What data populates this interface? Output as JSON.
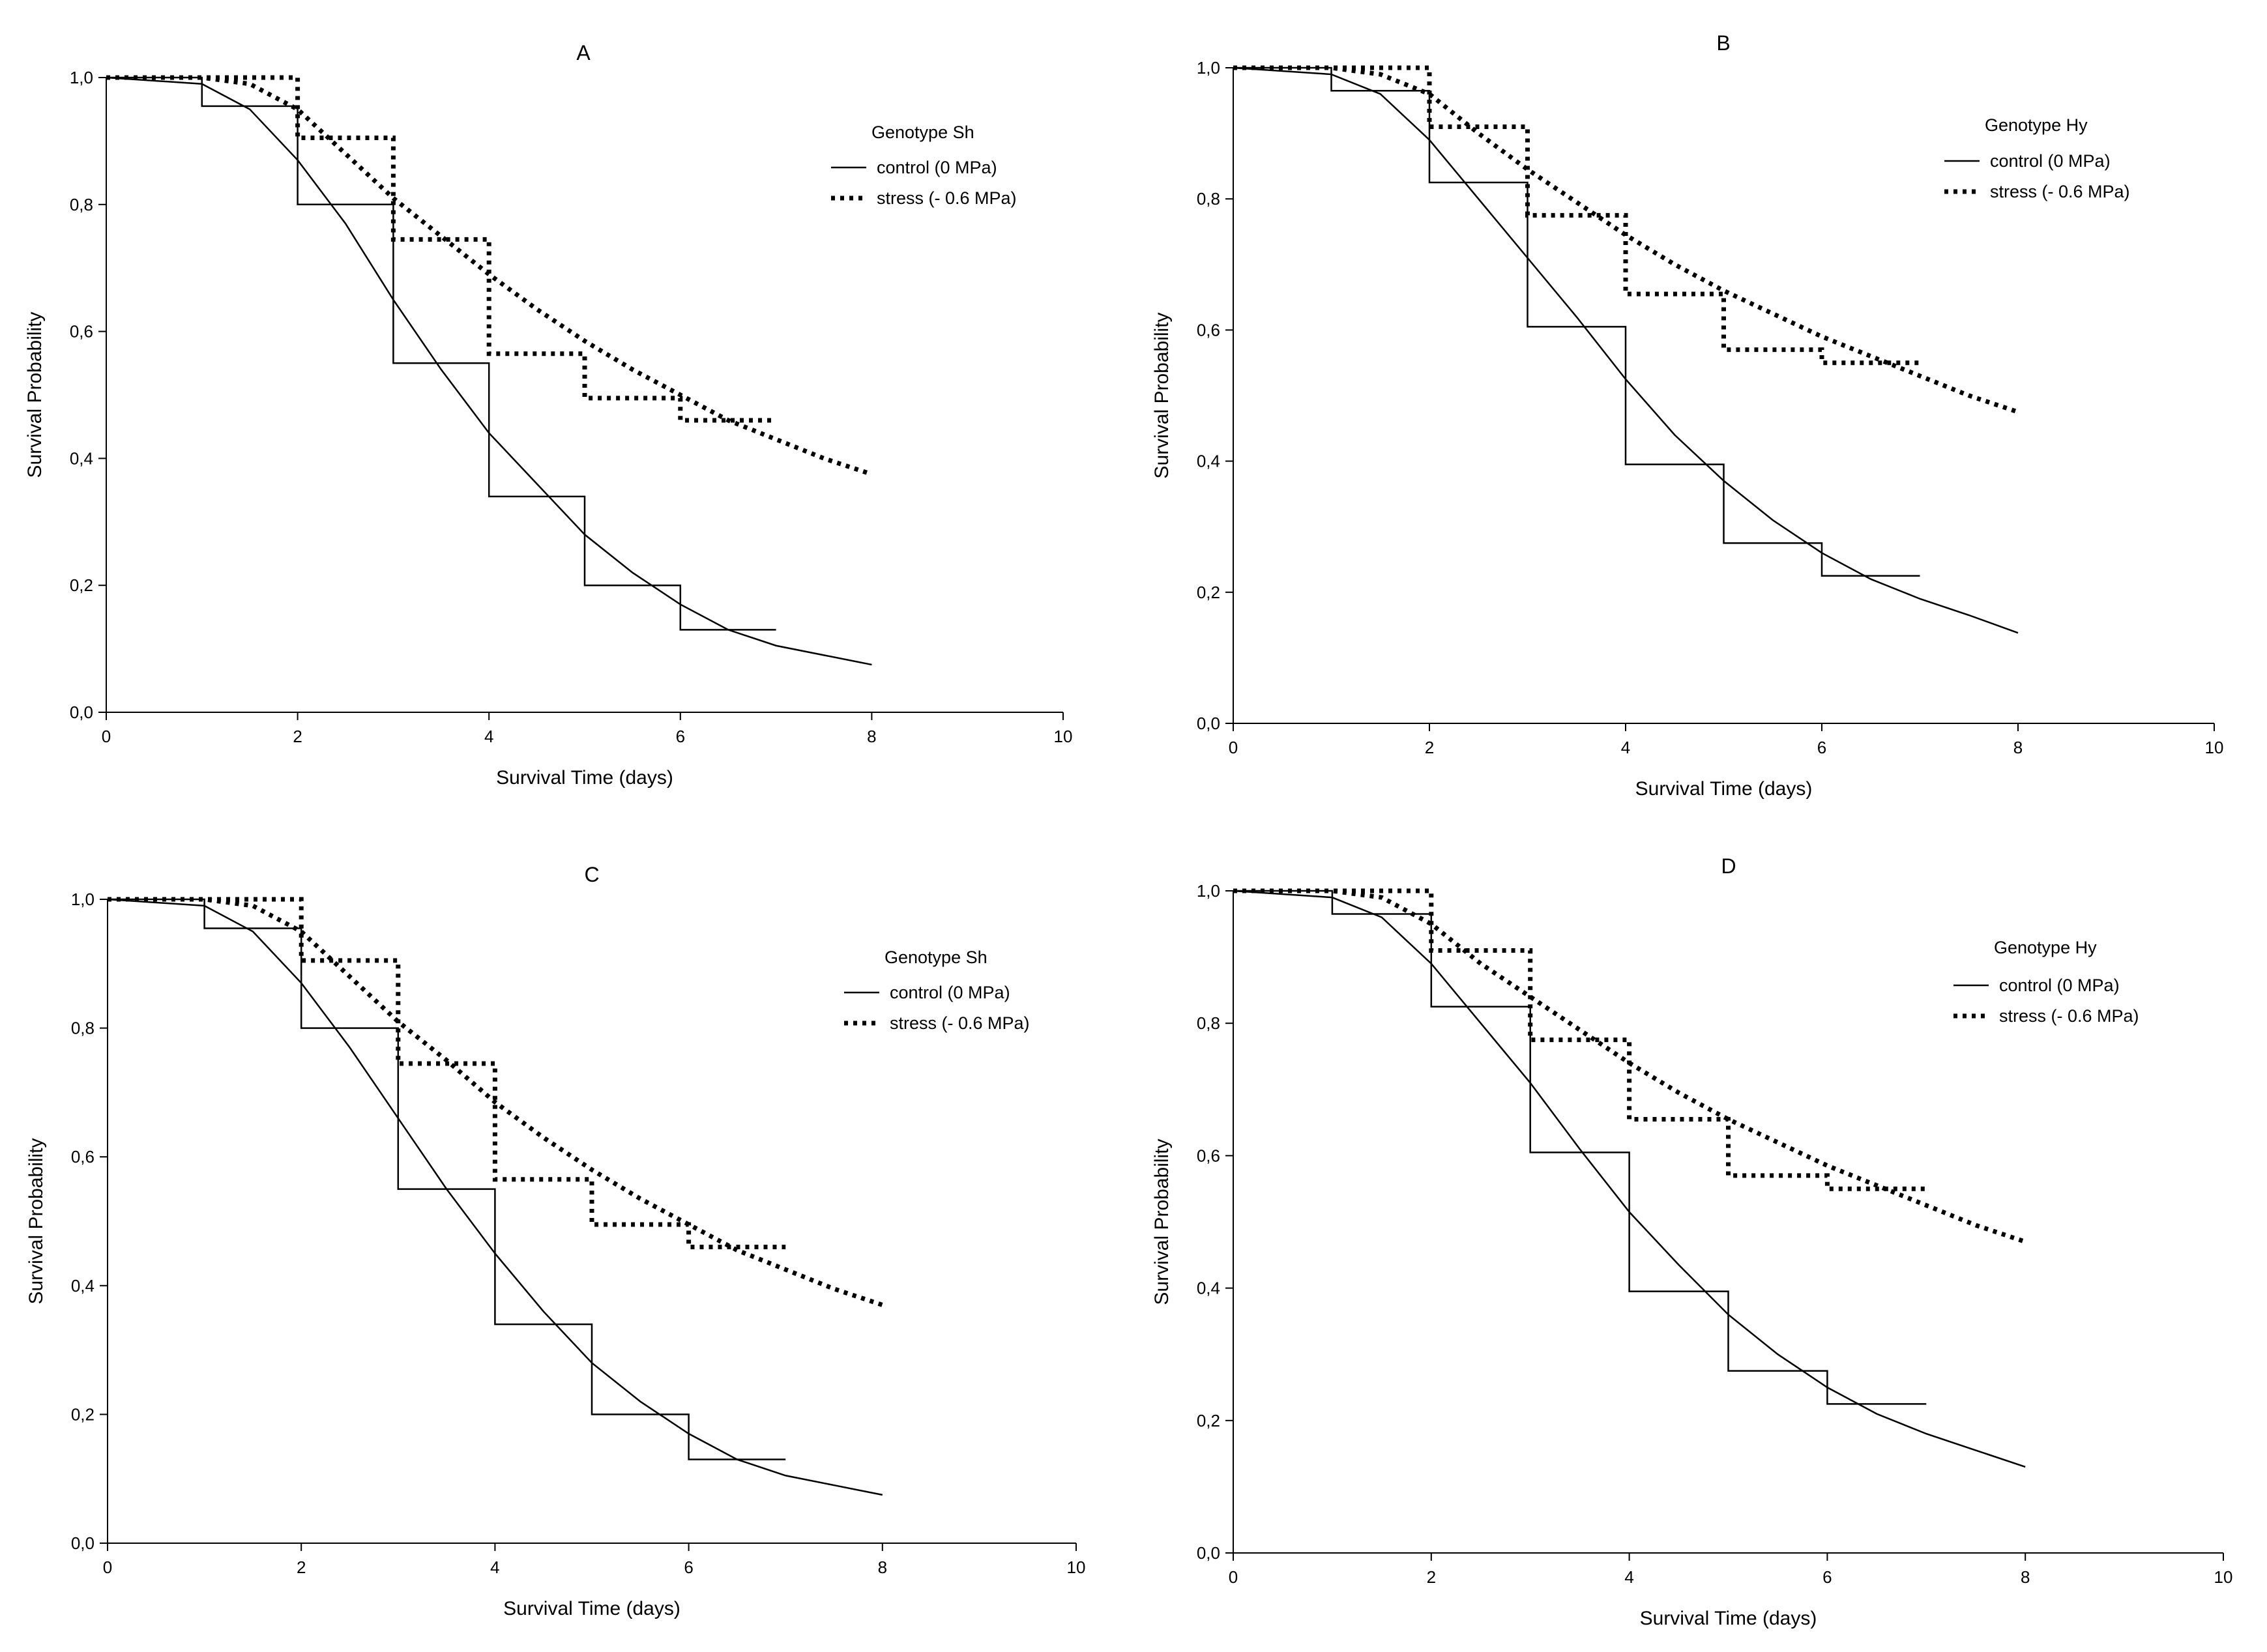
{
  "chart_data": [
    {
      "type": "line",
      "panel_label": "A",
      "xlabel": "Survival Time (days)",
      "ylabel": "Survival Probability",
      "xlim": [
        0,
        10
      ],
      "ylim": [
        0,
        1
      ],
      "x_ticks": [
        "0",
        "2",
        "4",
        "6",
        "8",
        "10"
      ],
      "y_ticks": [
        "0,0",
        "0,2",
        "0,4",
        "0,6",
        "0,8",
        "1,0"
      ],
      "legend": {
        "title": "Genotype Sh",
        "entries": [
          {
            "label": "control (0 MPa)",
            "style": "solid"
          },
          {
            "label": "stress (- 0.6 MPa)",
            "style": "dotted"
          }
        ]
      },
      "series": [
        {
          "name": "control (0 MPa) step",
          "style": "solid",
          "x": [
            0,
            1,
            2,
            3,
            4,
            5,
            6,
            7
          ],
          "y": [
            1.0,
            0.955,
            0.8,
            0.55,
            0.34,
            0.2,
            0.13,
            0.13
          ]
        },
        {
          "name": "stress (- 0.6 MPa) step",
          "style": "dotted",
          "x": [
            0,
            2,
            3,
            4,
            5,
            6,
            7
          ],
          "y": [
            1.0,
            0.905,
            0.745,
            0.565,
            0.495,
            0.46,
            0.46
          ]
        },
        {
          "name": "control (0 MPa) fit",
          "style": "solid",
          "x": [
            0,
            1,
            1.5,
            2,
            2.5,
            3,
            3.5,
            4,
            4.5,
            5,
            5.5,
            6,
            6.5,
            7,
            7.5,
            8
          ],
          "y": [
            1.0,
            0.99,
            0.95,
            0.87,
            0.77,
            0.65,
            0.54,
            0.44,
            0.36,
            0.28,
            0.22,
            0.17,
            0.13,
            0.105,
            0.09,
            0.075
          ]
        },
        {
          "name": "stress (- 0.6 MPa) fit",
          "style": "dotted",
          "x": [
            0,
            1,
            1.5,
            2,
            2.5,
            3,
            3.5,
            4,
            4.5,
            5,
            5.5,
            6,
            6.5,
            7,
            7.5,
            8
          ],
          "y": [
            1.0,
            1.0,
            0.99,
            0.95,
            0.88,
            0.81,
            0.75,
            0.69,
            0.635,
            0.585,
            0.54,
            0.5,
            0.46,
            0.43,
            0.4,
            0.375
          ]
        }
      ]
    },
    {
      "type": "line",
      "panel_label": "B",
      "xlabel": "Survival Time (days)",
      "ylabel": "Survival Probability",
      "xlim": [
        0,
        10
      ],
      "ylim": [
        0,
        1
      ],
      "x_ticks": [
        "0",
        "2",
        "4",
        "6",
        "8",
        "10"
      ],
      "y_ticks": [
        "0,0",
        "0,2",
        "0,4",
        "0,6",
        "0,8",
        "1,0"
      ],
      "legend": {
        "title": "Genotype Hy",
        "entries": [
          {
            "label": "control (0 MPa)",
            "style": "solid"
          },
          {
            "label": "stress (- 0.6 MPa)",
            "style": "dotted"
          }
        ]
      },
      "series": [
        {
          "name": "control (0 MPa) step",
          "style": "solid",
          "x": [
            0,
            1,
            2,
            3,
            4,
            5,
            6,
            7
          ],
          "y": [
            1.0,
            0.965,
            0.825,
            0.605,
            0.395,
            0.275,
            0.225,
            0.225
          ]
        },
        {
          "name": "stress (- 0.6 MPa) step",
          "style": "dotted",
          "x": [
            0,
            2,
            3,
            4,
            5,
            6,
            7
          ],
          "y": [
            1.0,
            0.91,
            0.775,
            0.655,
            0.57,
            0.55,
            0.55
          ]
        },
        {
          "name": "control (0 MPa) fit",
          "style": "solid",
          "x": [
            0,
            1,
            1.5,
            2,
            2.5,
            3,
            3.5,
            4,
            4.5,
            5,
            5.5,
            6,
            6.5,
            7,
            7.5,
            8
          ],
          "y": [
            1.0,
            0.99,
            0.96,
            0.89,
            0.8,
            0.71,
            0.62,
            0.525,
            0.44,
            0.37,
            0.31,
            0.26,
            0.22,
            0.19,
            0.165,
            0.138
          ]
        },
        {
          "name": "stress (- 0.6 MPa) fit",
          "style": "dotted",
          "x": [
            0,
            1,
            1.5,
            2,
            2.5,
            3,
            3.5,
            4,
            4.5,
            5,
            5.5,
            6,
            6.5,
            7,
            7.5,
            8
          ],
          "y": [
            1.0,
            1.0,
            0.99,
            0.96,
            0.9,
            0.845,
            0.795,
            0.745,
            0.7,
            0.66,
            0.625,
            0.59,
            0.56,
            0.53,
            0.5,
            0.475
          ]
        }
      ]
    },
    {
      "type": "line",
      "panel_label": "C",
      "xlabel": "Survival Time (days)",
      "ylabel": "Survival Probability",
      "xlim": [
        0,
        10
      ],
      "ylim": [
        0,
        1
      ],
      "x_ticks": [
        "0",
        "2",
        "4",
        "6",
        "8",
        "10"
      ],
      "y_ticks": [
        "0,0",
        "0,2",
        "0,4",
        "0,6",
        "0,8",
        "1,0"
      ],
      "legend": {
        "title": "Genotype Sh",
        "entries": [
          {
            "label": "control (0 MPa)",
            "style": "solid"
          },
          {
            "label": "stress (- 0.6 MPa)",
            "style": "dotted"
          }
        ]
      },
      "series": [
        {
          "name": "control (0 MPa) step",
          "style": "solid",
          "x": [
            0,
            1,
            2,
            3,
            4,
            5,
            6,
            7
          ],
          "y": [
            1.0,
            0.955,
            0.8,
            0.55,
            0.34,
            0.2,
            0.13,
            0.13
          ]
        },
        {
          "name": "stress (- 0.6 MPa) step",
          "style": "dotted",
          "x": [
            0,
            2,
            3,
            4,
            5,
            6,
            7
          ],
          "y": [
            1.0,
            0.905,
            0.745,
            0.565,
            0.495,
            0.46,
            0.46
          ]
        },
        {
          "name": "control (0 MPa) fit",
          "style": "solid",
          "x": [
            0,
            1,
            1.5,
            2,
            2.5,
            3,
            3.5,
            4,
            4.5,
            5,
            5.5,
            6,
            6.5,
            7,
            7.5,
            8
          ],
          "y": [
            1.0,
            0.99,
            0.95,
            0.87,
            0.77,
            0.66,
            0.55,
            0.45,
            0.36,
            0.28,
            0.22,
            0.17,
            0.13,
            0.105,
            0.09,
            0.075
          ]
        },
        {
          "name": "stress (- 0.6 MPa) fit",
          "style": "dotted",
          "x": [
            0,
            1,
            1.5,
            2,
            2.5,
            3,
            3.5,
            4,
            4.5,
            5,
            5.5,
            6,
            6.5,
            7,
            7.5,
            8
          ],
          "y": [
            1.0,
            1.0,
            0.99,
            0.95,
            0.88,
            0.81,
            0.75,
            0.685,
            0.63,
            0.58,
            0.535,
            0.495,
            0.455,
            0.425,
            0.395,
            0.37
          ]
        }
      ]
    },
    {
      "type": "line",
      "panel_label": "D",
      "xlabel": "Survival Time (days)",
      "ylabel": "Survival Probability",
      "xlim": [
        0,
        10
      ],
      "ylim": [
        0,
        1
      ],
      "x_ticks": [
        "0",
        "2",
        "4",
        "6",
        "8",
        "10"
      ],
      "y_ticks": [
        "0,0",
        "0,2",
        "0,4",
        "0,6",
        "0,8",
        "1,0"
      ],
      "legend": {
        "title": "Genotype Hy",
        "entries": [
          {
            "label": "control (0 MPa)",
            "style": "solid"
          },
          {
            "label": "stress (- 0.6 MPa)",
            "style": "dotted"
          }
        ]
      },
      "series": [
        {
          "name": "control (0 MPa) step",
          "style": "solid",
          "x": [
            0,
            1,
            2,
            3,
            4,
            5,
            6,
            7
          ],
          "y": [
            1.0,
            0.965,
            0.825,
            0.605,
            0.395,
            0.275,
            0.225,
            0.225
          ]
        },
        {
          "name": "stress (- 0.6 MPa) step",
          "style": "dotted",
          "x": [
            0,
            2,
            3,
            4,
            5,
            6,
            7
          ],
          "y": [
            1.0,
            0.91,
            0.775,
            0.655,
            0.57,
            0.55,
            0.55
          ]
        },
        {
          "name": "control (0 MPa) fit",
          "style": "solid",
          "x": [
            0,
            1,
            1.5,
            2,
            2.5,
            3,
            3.5,
            4,
            4.5,
            5,
            5.5,
            6,
            6.5,
            7,
            7.5,
            8
          ],
          "y": [
            1.0,
            0.99,
            0.96,
            0.89,
            0.8,
            0.71,
            0.61,
            0.515,
            0.435,
            0.36,
            0.3,
            0.25,
            0.21,
            0.18,
            0.155,
            0.13
          ]
        },
        {
          "name": "stress (- 0.6 MPa) fit",
          "style": "dotted",
          "x": [
            0,
            1,
            1.5,
            2,
            2.5,
            3,
            3.5,
            4,
            4.5,
            5,
            5.5,
            6,
            6.5,
            7,
            7.5,
            8
          ],
          "y": [
            1.0,
            1.0,
            0.99,
            0.95,
            0.89,
            0.84,
            0.79,
            0.74,
            0.695,
            0.655,
            0.62,
            0.585,
            0.555,
            0.525,
            0.495,
            0.47
          ]
        }
      ]
    }
  ]
}
